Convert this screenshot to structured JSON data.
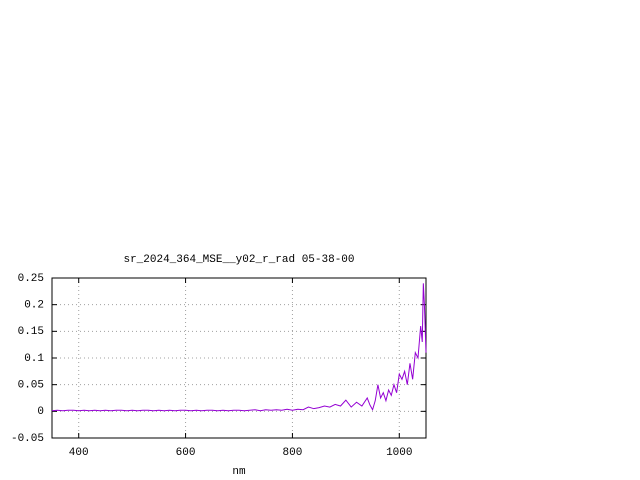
{
  "chart_data": {
    "type": "line",
    "title": "sr_2024_364_MSE__y02_r_rad 05-38-00",
    "x_label": "nm",
    "x": [
      350,
      360,
      370,
      380,
      390,
      400,
      410,
      420,
      430,
      440,
      450,
      460,
      470,
      480,
      490,
      500,
      510,
      520,
      530,
      540,
      550,
      560,
      570,
      580,
      590,
      600,
      610,
      620,
      630,
      640,
      650,
      660,
      670,
      680,
      690,
      700,
      710,
      720,
      730,
      740,
      750,
      760,
      770,
      780,
      790,
      800,
      810,
      820,
      830,
      840,
      850,
      860,
      870,
      880,
      890,
      900,
      910,
      920,
      930,
      940,
      945,
      950,
      955,
      960,
      965,
      970,
      975,
      980,
      985,
      990,
      995,
      1000,
      1005,
      1010,
      1015,
      1020,
      1025,
      1030,
      1035,
      1040,
      1043,
      1045,
      1047,
      1050
    ],
    "values": [
      0.001,
      0.002,
      0.001,
      0.002,
      0.002,
      0.001,
      0.002,
      0.001,
      0.002,
      0.001,
      0.002,
      0.001,
      0.002,
      0.002,
      0.001,
      0.002,
      0.001,
      0.002,
      0.002,
      0.001,
      0.002,
      0.001,
      0.002,
      0.001,
      0.002,
      0.002,
      0.001,
      0.002,
      0.001,
      0.002,
      0.002,
      0.001,
      0.002,
      0.001,
      0.002,
      0.002,
      0.001,
      0.002,
      0.003,
      0.001,
      0.003,
      0.002,
      0.003,
      0.002,
      0.004,
      0.002,
      0.004,
      0.003,
      0.008,
      0.005,
      0.007,
      0.01,
      0.008,
      0.013,
      0.01,
      0.021,
      0.008,
      0.017,
      0.01,
      0.025,
      0.012,
      0.003,
      0.02,
      0.05,
      0.025,
      0.035,
      0.02,
      0.04,
      0.03,
      0.05,
      0.035,
      0.07,
      0.06,
      0.075,
      0.05,
      0.09,
      0.06,
      0.11,
      0.1,
      0.16,
      0.13,
      0.24,
      0.2,
      0.11
    ],
    "color": "#9400d3",
    "xlim": [
      350,
      1050
    ],
    "xticks": [
      400,
      600,
      800,
      1000
    ],
    "ylim": [
      -0.05,
      0.25
    ],
    "yticks": [
      -0.05,
      0,
      0.05,
      0.1,
      0.15,
      0.2,
      0.25
    ],
    "grid": true
  }
}
